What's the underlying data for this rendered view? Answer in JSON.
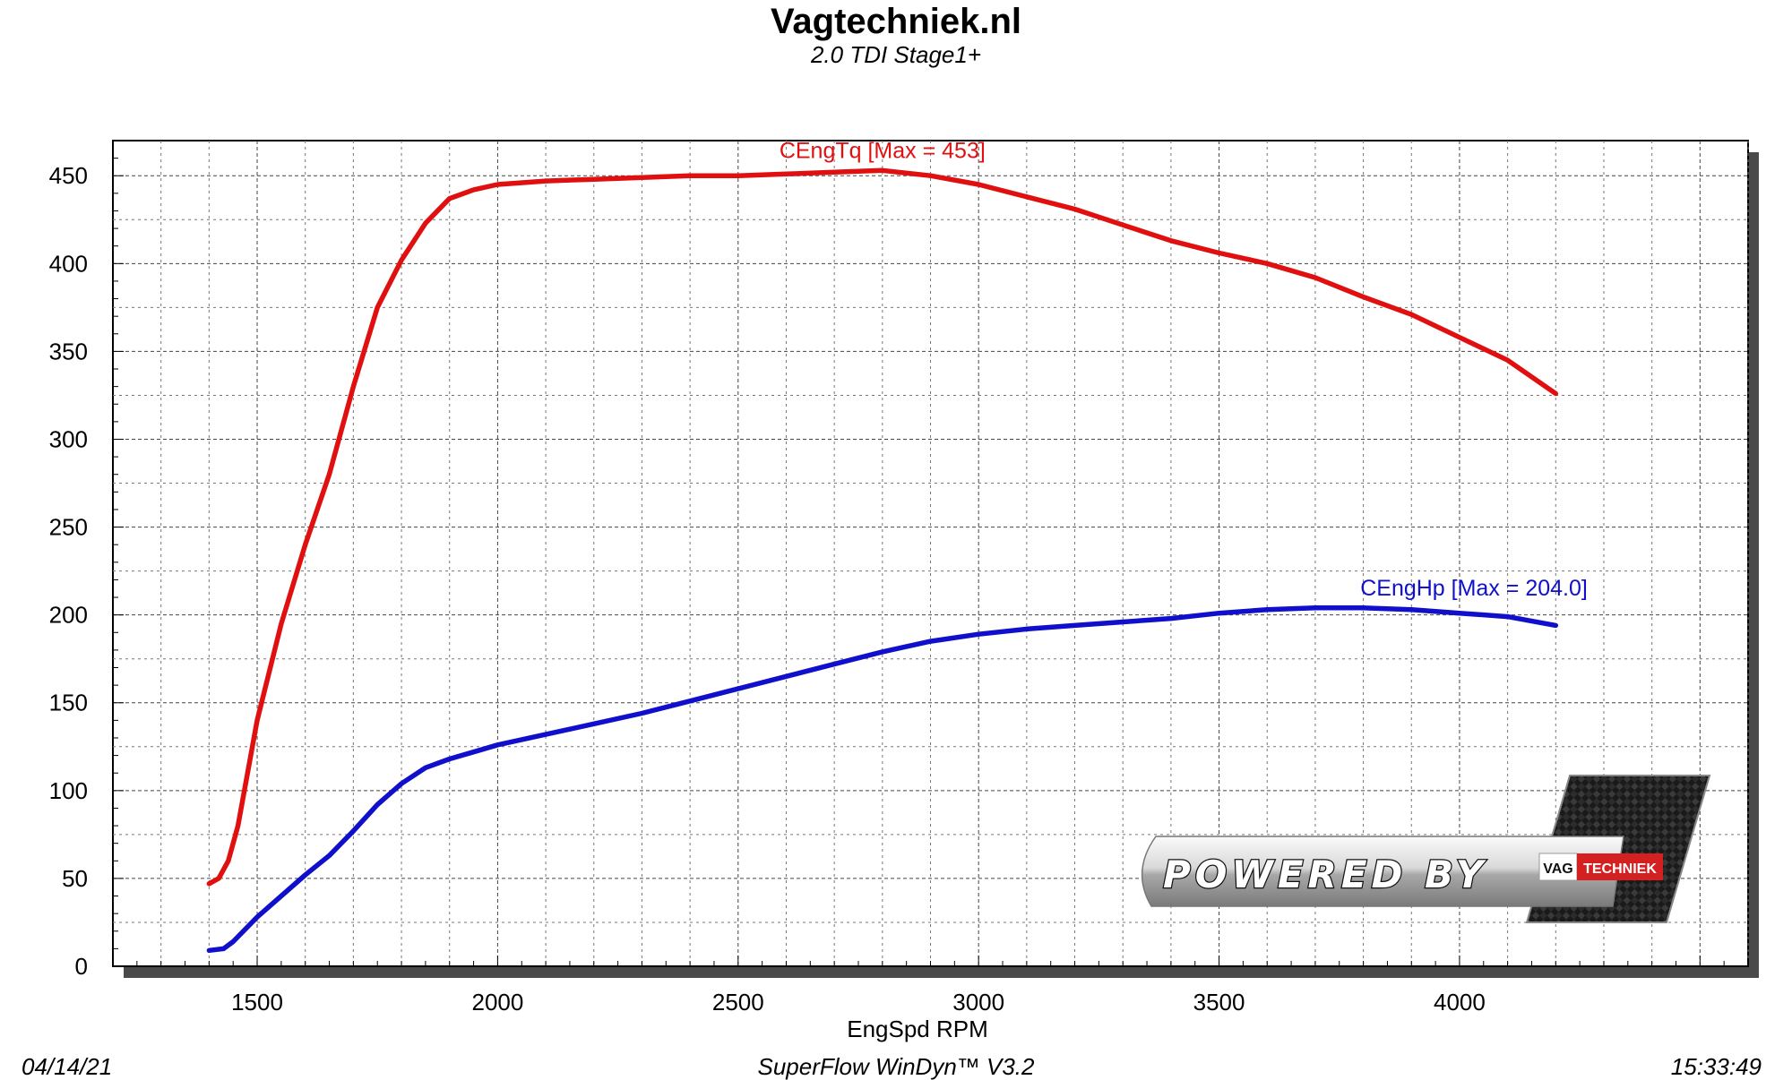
{
  "header": {
    "title": "Vagtechniek.nl",
    "subtitle": "2.0 TDI Stage1+"
  },
  "footer": {
    "date": "04/14/21",
    "software": "SuperFlow WinDyn™  V3.2",
    "time": "15:33:49"
  },
  "logo": {
    "text": "POWERED BY",
    "badge_left": "VAG",
    "badge_right": "TECHNIEK"
  },
  "colors": {
    "torque": "#e01010",
    "power": "#1010cc"
  },
  "chart_data": {
    "type": "line",
    "title": "Vagtechniek.nl",
    "subtitle": "2.0 TDI Stage1+",
    "xlabel": "EngSpd RPM",
    "ylabel": "",
    "xlim": [
      1200,
      4600
    ],
    "ylim": [
      0,
      470
    ],
    "x_ticks": [
      1500,
      2000,
      2500,
      3000,
      3500,
      4000
    ],
    "y_ticks": [
      0,
      50,
      100,
      150,
      200,
      250,
      300,
      350,
      400,
      450
    ],
    "grid": true,
    "series": [
      {
        "name": "CEngTq",
        "label": "CEngTq [Max = 453]",
        "color": "#e01010",
        "points": [
          [
            1400,
            47
          ],
          [
            1420,
            50
          ],
          [
            1440,
            60
          ],
          [
            1460,
            80
          ],
          [
            1480,
            110
          ],
          [
            1500,
            140
          ],
          [
            1550,
            195
          ],
          [
            1600,
            240
          ],
          [
            1650,
            280
          ],
          [
            1700,
            330
          ],
          [
            1750,
            375
          ],
          [
            1800,
            402
          ],
          [
            1850,
            423
          ],
          [
            1900,
            437
          ],
          [
            1950,
            442
          ],
          [
            2000,
            445
          ],
          [
            2100,
            447
          ],
          [
            2200,
            448
          ],
          [
            2300,
            449
          ],
          [
            2400,
            450
          ],
          [
            2500,
            450
          ],
          [
            2600,
            451
          ],
          [
            2700,
            452
          ],
          [
            2800,
            453
          ],
          [
            2900,
            450
          ],
          [
            3000,
            445
          ],
          [
            3100,
            438
          ],
          [
            3200,
            431
          ],
          [
            3300,
            422
          ],
          [
            3400,
            413
          ],
          [
            3500,
            406
          ],
          [
            3600,
            400
          ],
          [
            3700,
            392
          ],
          [
            3800,
            381
          ],
          [
            3900,
            371
          ],
          [
            4000,
            358
          ],
          [
            4100,
            345
          ],
          [
            4200,
            326
          ]
        ]
      },
      {
        "name": "CEngHp",
        "label": "CEngHp [Max = 204.0]",
        "color": "#1010cc",
        "points": [
          [
            1400,
            9
          ],
          [
            1430,
            10
          ],
          [
            1450,
            14
          ],
          [
            1500,
            28
          ],
          [
            1550,
            40
          ],
          [
            1600,
            52
          ],
          [
            1650,
            63
          ],
          [
            1700,
            77
          ],
          [
            1750,
            92
          ],
          [
            1800,
            104
          ],
          [
            1850,
            113
          ],
          [
            1900,
            118
          ],
          [
            1950,
            122
          ],
          [
            2000,
            126
          ],
          [
            2100,
            132
          ],
          [
            2200,
            138
          ],
          [
            2300,
            144
          ],
          [
            2400,
            151
          ],
          [
            2500,
            158
          ],
          [
            2600,
            165
          ],
          [
            2700,
            172
          ],
          [
            2800,
            179
          ],
          [
            2900,
            185
          ],
          [
            3000,
            189
          ],
          [
            3100,
            192
          ],
          [
            3200,
            194
          ],
          [
            3300,
            196
          ],
          [
            3400,
            198
          ],
          [
            3500,
            201
          ],
          [
            3600,
            203
          ],
          [
            3700,
            204
          ],
          [
            3800,
            204
          ],
          [
            3900,
            203
          ],
          [
            4000,
            201
          ],
          [
            4100,
            199
          ],
          [
            4200,
            194
          ]
        ]
      }
    ]
  }
}
